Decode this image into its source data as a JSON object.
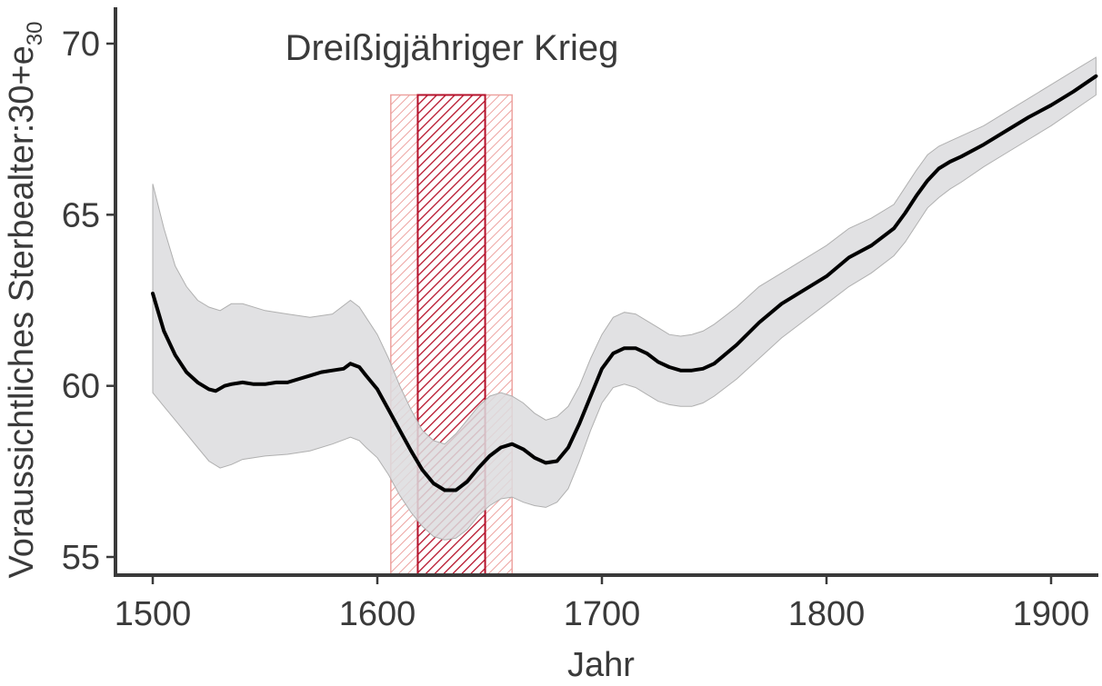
{
  "chart_data": {
    "type": "line",
    "xlabel": "Jahr",
    "ylabel": "Voraussichtliches Sterbealter:30+e",
    "ylabel_subscript": "30",
    "xlim": [
      1500,
      1920
    ],
    "ylim": [
      55,
      70
    ],
    "x_ticks": [
      1500,
      1600,
      1700,
      1800,
      1900
    ],
    "y_ticks": [
      55,
      60,
      65,
      70
    ],
    "grid": false,
    "annotations": [
      {
        "text": "Dreißigjähriger Krieg"
      }
    ],
    "shaded_periods": [
      {
        "x_start": 1606,
        "x_end": 1660,
        "style": "light hatched"
      },
      {
        "x_start": 1618,
        "x_end": 1648,
        "style": "dark hatched"
      }
    ],
    "series": [
      {
        "x": [
          1500,
          1505,
          1510,
          1515,
          1520,
          1525,
          1528,
          1532,
          1535,
          1540,
          1545,
          1550,
          1555,
          1560,
          1565,
          1570,
          1575,
          1580,
          1585,
          1588,
          1592,
          1595,
          1600,
          1605,
          1610,
          1615,
          1620,
          1625,
          1630,
          1635,
          1640,
          1645,
          1650,
          1655,
          1660,
          1665,
          1670,
          1675,
          1680,
          1685,
          1690,
          1695,
          1700,
          1705,
          1710,
          1715,
          1720,
          1725,
          1730,
          1735,
          1740,
          1745,
          1750,
          1760,
          1770,
          1780,
          1790,
          1800,
          1810,
          1820,
          1830,
          1835,
          1840,
          1845,
          1850,
          1855,
          1860,
          1870,
          1880,
          1890,
          1900,
          1910,
          1920
        ],
        "y": [
          62.7,
          61.6,
          60.9,
          60.4,
          60.1,
          59.9,
          59.85,
          60.0,
          60.05,
          60.1,
          60.05,
          60.05,
          60.1,
          60.1,
          60.2,
          60.3,
          60.4,
          60.45,
          60.5,
          60.65,
          60.55,
          60.3,
          59.9,
          59.3,
          58.7,
          58.1,
          57.55,
          57.15,
          56.95,
          56.95,
          57.2,
          57.6,
          57.95,
          58.2,
          58.3,
          58.15,
          57.9,
          57.75,
          57.8,
          58.2,
          58.9,
          59.7,
          60.5,
          60.95,
          61.1,
          61.1,
          60.95,
          60.7,
          60.55,
          60.45,
          60.45,
          60.5,
          60.65,
          61.2,
          61.85,
          62.4,
          62.8,
          63.2,
          63.75,
          64.1,
          64.6,
          65.05,
          65.55,
          66.0,
          66.35,
          66.55,
          66.7,
          67.05,
          67.45,
          67.85,
          68.2,
          68.6,
          69.05
        ]
      }
    ],
    "confidence_band": {
      "x": [
        1500,
        1505,
        1510,
        1515,
        1520,
        1525,
        1530,
        1535,
        1540,
        1550,
        1560,
        1570,
        1580,
        1588,
        1592,
        1595,
        1600,
        1605,
        1610,
        1615,
        1620,
        1625,
        1630,
        1635,
        1640,
        1645,
        1650,
        1655,
        1660,
        1665,
        1670,
        1675,
        1680,
        1685,
        1690,
        1695,
        1700,
        1705,
        1710,
        1715,
        1720,
        1725,
        1730,
        1735,
        1740,
        1745,
        1750,
        1760,
        1770,
        1780,
        1790,
        1800,
        1810,
        1820,
        1830,
        1835,
        1840,
        1845,
        1850,
        1855,
        1860,
        1870,
        1880,
        1890,
        1900,
        1910,
        1920
      ],
      "upper": [
        65.9,
        64.6,
        63.5,
        62.9,
        62.5,
        62.3,
        62.2,
        62.4,
        62.4,
        62.2,
        62.1,
        62.0,
        62.1,
        62.5,
        62.3,
        62.0,
        61.5,
        60.8,
        60.0,
        59.3,
        58.7,
        58.4,
        58.3,
        58.6,
        59.0,
        59.4,
        59.7,
        59.8,
        59.7,
        59.5,
        59.2,
        59.0,
        59.1,
        59.4,
        60.0,
        60.8,
        61.5,
        62.0,
        62.15,
        62.1,
        61.9,
        61.7,
        61.5,
        61.45,
        61.5,
        61.6,
        61.8,
        62.3,
        62.9,
        63.3,
        63.7,
        64.1,
        64.6,
        64.9,
        65.3,
        65.8,
        66.3,
        66.75,
        67.0,
        67.15,
        67.3,
        67.6,
        68.0,
        68.4,
        68.8,
        69.2,
        69.6
      ],
      "lower": [
        59.8,
        59.4,
        59.0,
        58.6,
        58.2,
        57.8,
        57.6,
        57.7,
        57.85,
        57.95,
        58.0,
        58.1,
        58.3,
        58.5,
        58.4,
        58.2,
        57.9,
        57.4,
        56.8,
        56.3,
        55.9,
        55.6,
        55.5,
        55.55,
        55.8,
        56.2,
        56.5,
        56.7,
        56.75,
        56.6,
        56.5,
        56.45,
        56.6,
        57.0,
        57.8,
        58.7,
        59.5,
        59.95,
        60.05,
        59.95,
        59.75,
        59.55,
        59.45,
        59.4,
        59.4,
        59.5,
        59.7,
        60.2,
        60.8,
        61.4,
        61.9,
        62.4,
        62.9,
        63.3,
        63.8,
        64.2,
        64.7,
        65.2,
        65.5,
        65.75,
        65.95,
        66.4,
        66.8,
        67.2,
        67.6,
        68.05,
        68.5
      ]
    },
    "colors": {
      "line": "#000000",
      "band": "#dcdcde",
      "band_stroke": "#b0b0b0",
      "war_light": "#eda3a0",
      "war_dark": "#b5122b",
      "axis": "#3a3a3a"
    }
  }
}
